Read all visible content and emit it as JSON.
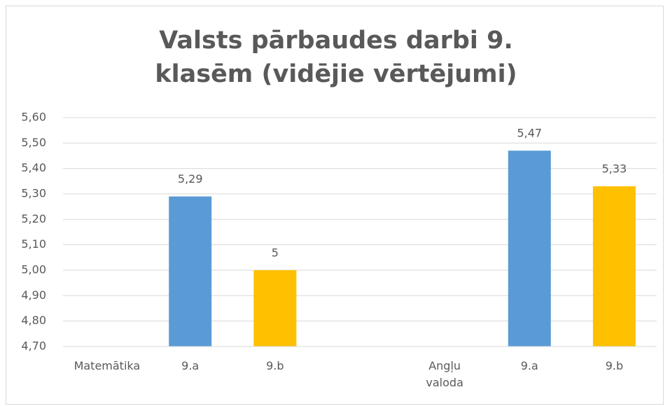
{
  "chart_data": {
    "type": "bar",
    "title": "Valsts pārbaudes darbi 9. klasēm (vidējie vērtējumi)",
    "categories": [
      "Matemātika",
      "9.a",
      "9.b",
      null,
      "Angļu valoda",
      "9.a",
      "9.b"
    ],
    "values": [
      null,
      5.29,
      5,
      null,
      null,
      5.47,
      5.33
    ],
    "value_labels": [
      null,
      "5,29",
      "5",
      null,
      null,
      "5,47",
      "5,33"
    ],
    "colors": [
      null,
      "#5b9bd5",
      "#ffc000",
      null,
      null,
      "#5b9bd5",
      "#ffc000"
    ],
    "ylim": [
      4.7,
      5.6
    ],
    "yticks": [
      {
        "value": 4.7,
        "label": "4,70"
      },
      {
        "value": 4.8,
        "label": "4,80"
      },
      {
        "value": 4.9,
        "label": "4,90"
      },
      {
        "value": 5.0,
        "label": "5,00"
      },
      {
        "value": 5.1,
        "label": "5,10"
      },
      {
        "value": 5.2,
        "label": "5,20"
      },
      {
        "value": 5.3,
        "label": "5,30"
      },
      {
        "value": 5.4,
        "label": "5,40"
      },
      {
        "value": 5.5,
        "label": "5,50"
      },
      {
        "value": 5.6,
        "label": "5,60"
      }
    ],
    "grid": true
  }
}
